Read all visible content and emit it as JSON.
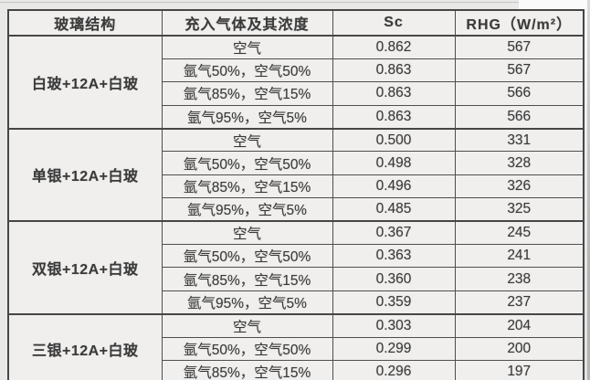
{
  "scan": {
    "page_background": "#e8e8e7",
    "cell_background": "#f0efee",
    "border_color": "#464646",
    "text_color": "#3a3a3a"
  },
  "table": {
    "headers": {
      "structure": "玻璃结构",
      "gas": "充入气体及其浓度",
      "sc": "Sc",
      "rhg": "RHG（W/m²）"
    },
    "groups": [
      {
        "structure": "白玻+12A+白玻",
        "rows": [
          {
            "gas": "空气",
            "sc": "0.862",
            "rhg": "567"
          },
          {
            "gas": "氩气50%，空气50%",
            "sc": "0.863",
            "rhg": "567"
          },
          {
            "gas": "氩气85%，空气15%",
            "sc": "0.863",
            "rhg": "566"
          },
          {
            "gas": "氩气95%，空气5%",
            "sc": "0.863",
            "rhg": "566"
          }
        ]
      },
      {
        "structure": "单银+12A+白玻",
        "rows": [
          {
            "gas": "空气",
            "sc": "0.500",
            "rhg": "331"
          },
          {
            "gas": "氩气50%，空气50%",
            "sc": "0.498",
            "rhg": "328"
          },
          {
            "gas": "氩气85%，空气15%",
            "sc": "0.496",
            "rhg": "326"
          },
          {
            "gas": "氩气95%，空气5%",
            "sc": "0.485",
            "rhg": "325"
          }
        ]
      },
      {
        "structure": "双银+12A+白玻",
        "rows": [
          {
            "gas": "空气",
            "sc": "0.367",
            "rhg": "245"
          },
          {
            "gas": "氩气50%，空气50%",
            "sc": "0.363",
            "rhg": "241"
          },
          {
            "gas": "氩气85%，空气15%",
            "sc": "0.360",
            "rhg": "238"
          },
          {
            "gas": "氩气95%，空气5%",
            "sc": "0.359",
            "rhg": "237"
          }
        ]
      },
      {
        "structure": "三银+12A+白玻",
        "rows": [
          {
            "gas": "空气",
            "sc": "0.303",
            "rhg": "204"
          },
          {
            "gas": "氩气50%，空气50%",
            "sc": "0.299",
            "rhg": "200"
          },
          {
            "gas": "氩气85%，空气15%",
            "sc": "0.296",
            "rhg": "197"
          }
        ]
      }
    ]
  }
}
